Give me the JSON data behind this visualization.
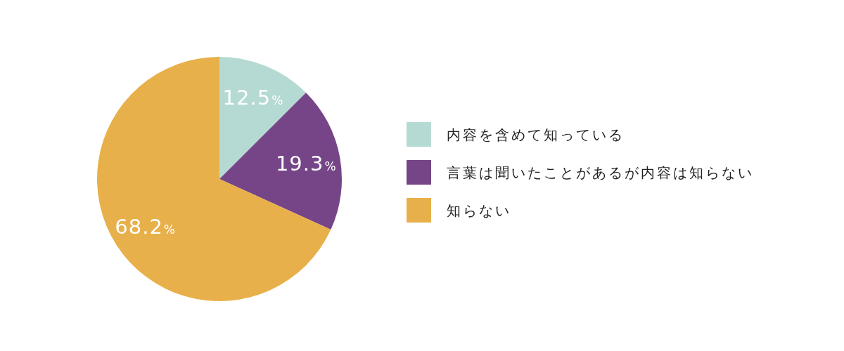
{
  "chart_data": {
    "type": "pie",
    "categories": [
      "内容を含めて知っている",
      "言葉は聞いたことがあるが内容は知らない",
      "知らない"
    ],
    "values": [
      12.5,
      19.3,
      68.2
    ],
    "colors": [
      "#b5dad3",
      "#764587",
      "#e8b04a"
    ],
    "value_labels": [
      "12.5%",
      "19.3%",
      "68.2%"
    ],
    "legend": "right"
  }
}
